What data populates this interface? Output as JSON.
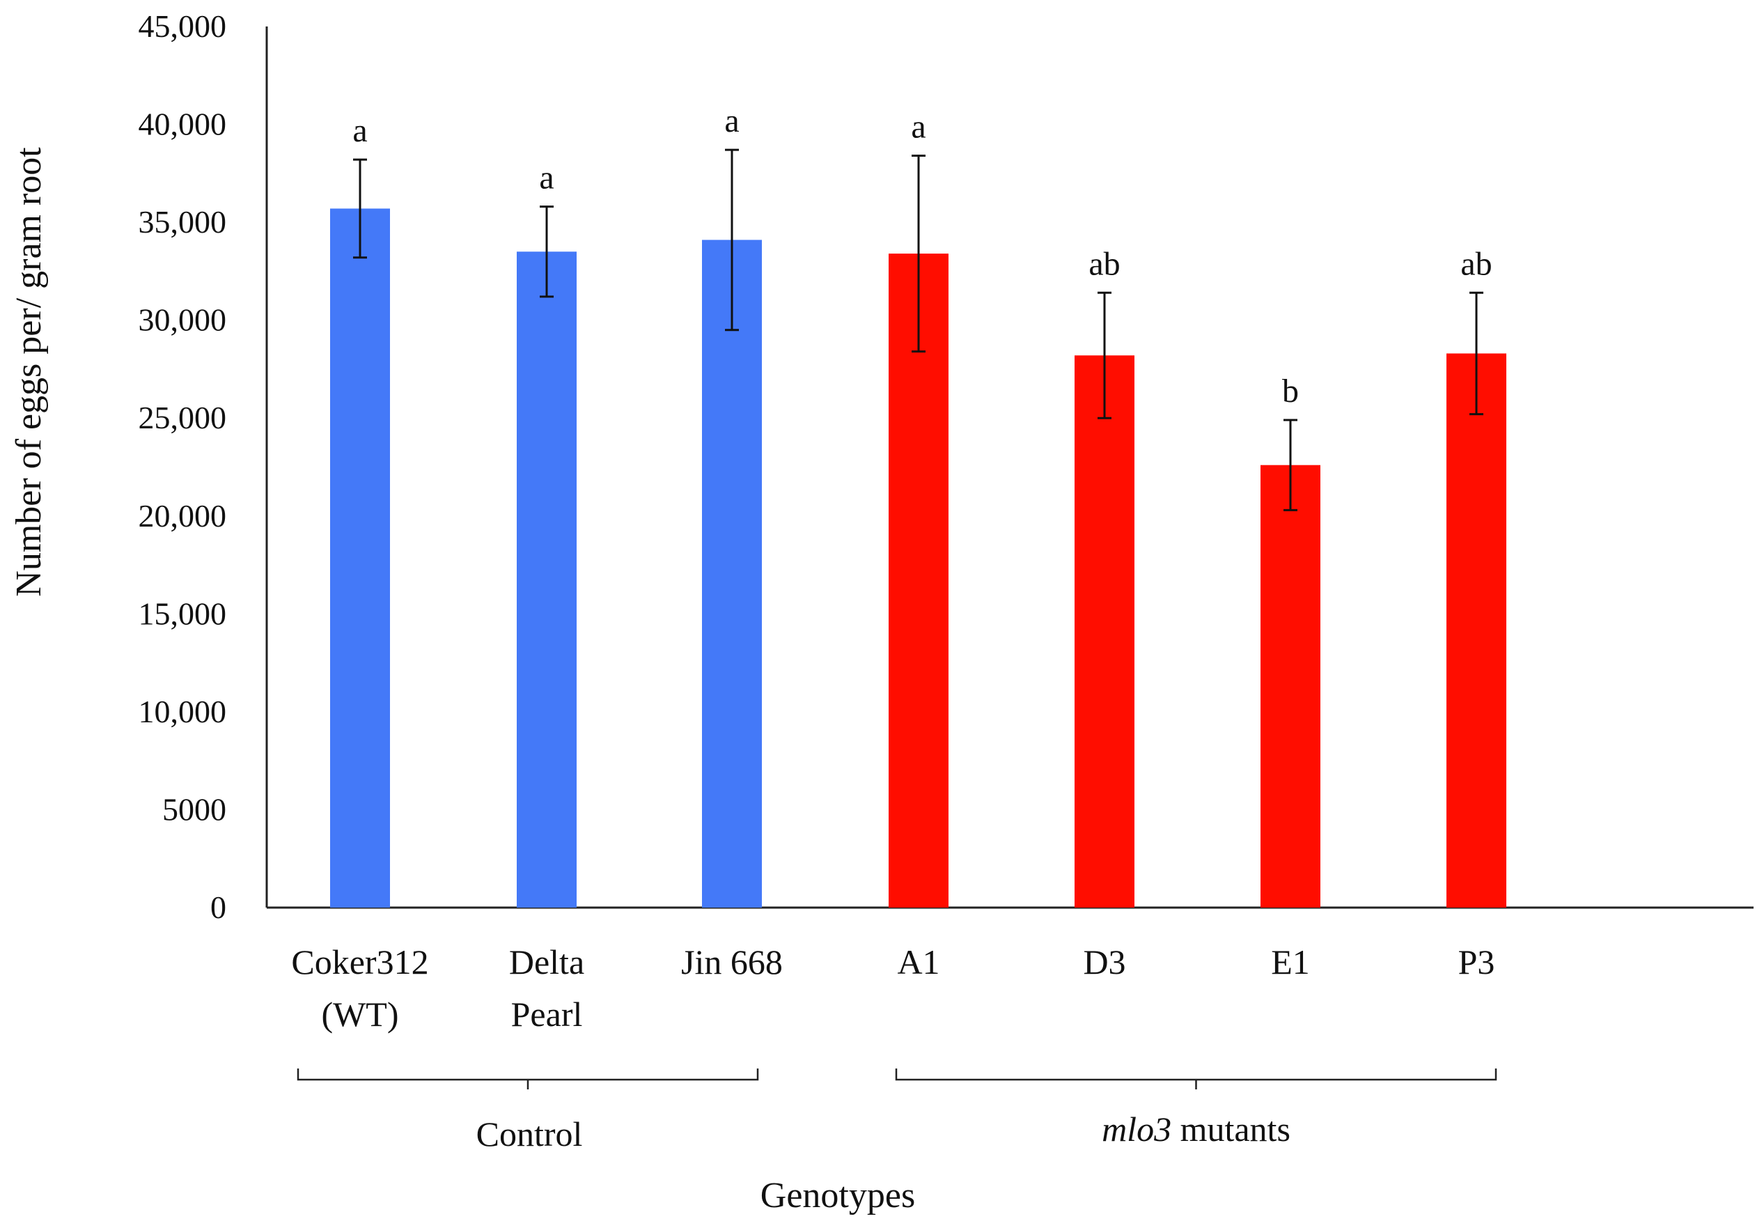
{
  "chart_data": {
    "type": "bar",
    "title": "",
    "xlabel": "Genotypes",
    "ylabel": "Number of eggs per/ gram root",
    "ylim": [
      0,
      45000
    ],
    "yticks": [
      0,
      5000,
      10000,
      15000,
      20000,
      25000,
      30000,
      35000,
      40000,
      45000
    ],
    "ytick_labels": [
      "0",
      "5000",
      "10,000",
      "15,000",
      "20,000",
      "25,000",
      "30,000",
      "35,000",
      "40,000",
      "45,000"
    ],
    "grid": false,
    "categories": [
      {
        "lines": [
          "Coker312",
          "(WT)"
        ],
        "value": 35700,
        "error": 2500,
        "significance": "a",
        "group": "control"
      },
      {
        "lines": [
          "Delta",
          "Pearl"
        ],
        "value": 33500,
        "error": 2300,
        "significance": "a",
        "group": "control"
      },
      {
        "lines": [
          "Jin 668"
        ],
        "value": 34100,
        "error": 4600,
        "significance": "a",
        "group": "control"
      },
      {
        "lines": [
          "A1"
        ],
        "value": 33400,
        "error": 5000,
        "significance": "a",
        "group": "mutant"
      },
      {
        "lines": [
          "D3"
        ],
        "value": 28200,
        "error": 3200,
        "significance": "ab",
        "group": "mutant"
      },
      {
        "lines": [
          "E1"
        ],
        "value": 22600,
        "error": 2300,
        "significance": "b",
        "group": "mutant"
      },
      {
        "lines": [
          "P3"
        ],
        "value": 28300,
        "error": 3100,
        "significance": "ab",
        "group": "mutant"
      }
    ],
    "groups": {
      "control": {
        "label": "Control",
        "color": "#4479f8"
      },
      "mutant": {
        "label_italic": "mlo3",
        "label_rest": " mutants",
        "color": "#ff0d00"
      }
    },
    "axis_color": "#222222",
    "error_bar_color": "#111111"
  }
}
